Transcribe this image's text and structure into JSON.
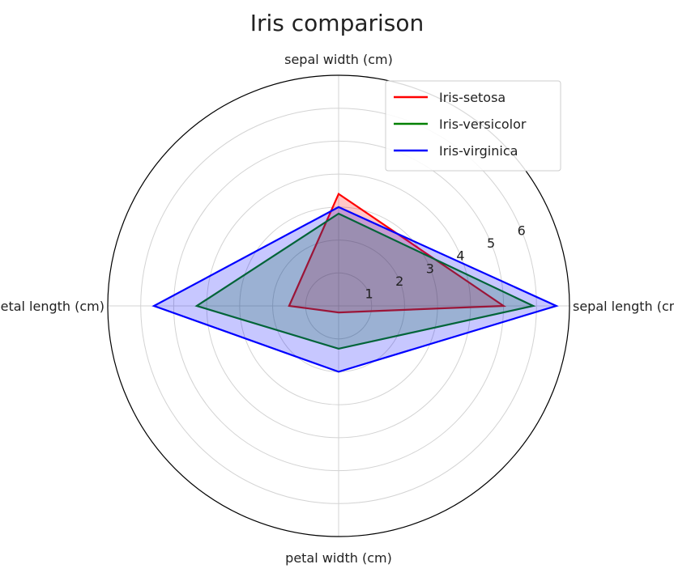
{
  "chart_data": {
    "type": "radar",
    "title": "Iris comparison",
    "axes": [
      "sepal length (cm)",
      "sepal width (cm)",
      "petal length (cm)",
      "petal width (cm)"
    ],
    "radial_ticks": [
      1,
      2,
      3,
      4,
      5,
      6
    ],
    "rlim": [
      0,
      7
    ],
    "grid": true,
    "legend_position": "top-right",
    "series": [
      {
        "name": "Iris-setosa",
        "color": "#ff0000",
        "values": [
          5.0,
          3.4,
          1.5,
          0.2
        ]
      },
      {
        "name": "Iris-versicolor",
        "color": "#008000",
        "values": [
          5.9,
          2.8,
          4.3,
          1.3
        ]
      },
      {
        "name": "Iris-virginica",
        "color": "#0000ff",
        "values": [
          6.6,
          3.0,
          5.6,
          2.0
        ]
      }
    ]
  }
}
